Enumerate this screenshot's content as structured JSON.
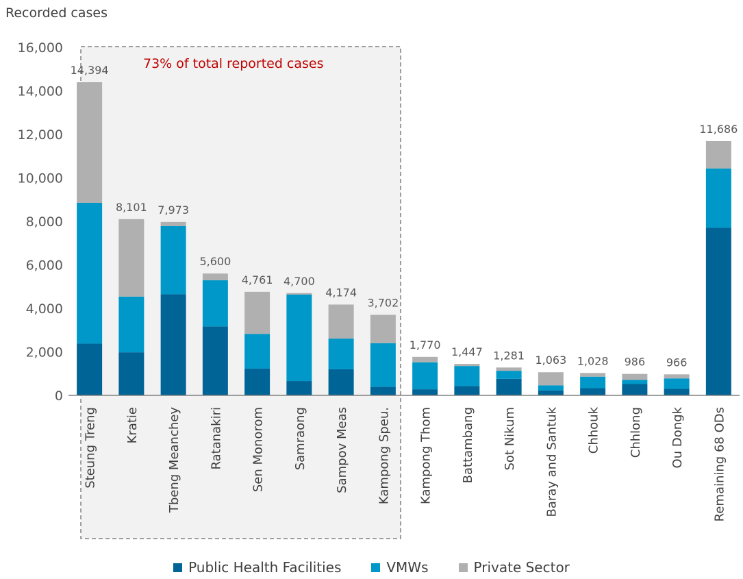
{
  "chart_data": {
    "type": "bar",
    "stacked": true,
    "title": "",
    "ylabel": "Recorded cases",
    "ylim": [
      0,
      16000
    ],
    "yticks": [
      0,
      2000,
      4000,
      6000,
      8000,
      10000,
      12000,
      14000,
      16000
    ],
    "ytick_labels": [
      "0",
      "2,000",
      "4,000",
      "6,000",
      "8,000",
      "10,000",
      "12,000",
      "14,000",
      "16,000"
    ],
    "categories": [
      "Steung Treng",
      "Kratie",
      "Tbeng Meanchey",
      "Ratanakiri",
      "Sen Monorom",
      "Samraong",
      "Sampov Meas",
      "Kampong Speu.",
      "Kampong Thom",
      "Battambang",
      "Sot Nikum",
      "Baray and Santuk",
      "Chhouk",
      "Chhlong",
      "Ou Dongk",
      "Remaining 68 ODs"
    ],
    "series": [
      {
        "name": "Public Health Facilities",
        "color": "#006496",
        "values": [
          2380,
          1980,
          4650,
          3170,
          1230,
          660,
          1200,
          390,
          280,
          430,
          760,
          230,
          330,
          520,
          300,
          7700
        ]
      },
      {
        "name": "VMWs",
        "color": "#0098C8",
        "values": [
          6470,
          2560,
          3130,
          2120,
          1590,
          3970,
          1410,
          2010,
          1240,
          920,
          370,
          230,
          530,
          190,
          480,
          2730
        ]
      },
      {
        "name": "Private Sector",
        "color": "#B0B0B0",
        "values": [
          5544,
          3561,
          193,
          310,
          1941,
          70,
          1564,
          1302,
          250,
          97,
          151,
          603,
          168,
          276,
          186,
          1256
        ]
      }
    ],
    "totals": [
      14394,
      8101,
      7973,
      5600,
      4761,
      4700,
      4174,
      3702,
      1770,
      1447,
      1281,
      1063,
      1028,
      986,
      966,
      11686
    ],
    "total_labels": [
      "14,394",
      "8,101",
      "7,973",
      "5,600",
      "4,761",
      "4,700",
      "4,174",
      "3,702",
      "1,770",
      "1,447",
      "1,281",
      "1,063",
      "1,028",
      "986",
      "966",
      "11,686"
    ],
    "annotation": {
      "text": "73% of total reported cases",
      "color": "#C00000",
      "box_fill": "#F2F2F2"
    },
    "legend": {
      "position": "bottom",
      "entries": [
        "Public Health Facilities",
        "VMWs",
        "Private Sector"
      ]
    },
    "grid": false
  }
}
